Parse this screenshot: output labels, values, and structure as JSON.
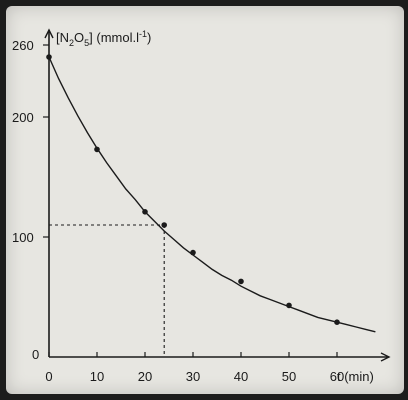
{
  "chart_data": {
    "type": "scatter",
    "ylabel_parts": {
      "pre": "[N",
      "sub1": "2",
      "mid": "O",
      "sub2": "5",
      "post": "] (mmol.l",
      "sup": "-1",
      "end": ")"
    },
    "xlabel": "t (min)",
    "xlim": [
      0,
      68
    ],
    "ylim": [
      0,
      265
    ],
    "x_ticks": [
      "0",
      "10",
      "20",
      "30",
      "40",
      "50",
      "60"
    ],
    "y_ticks": [
      "0",
      "100",
      "200",
      "260"
    ],
    "series": [
      {
        "x": [
          0,
          10,
          20,
          24,
          30,
          40,
          50,
          60
        ],
        "y": [
          250,
          173,
          121,
          110,
          87,
          63,
          43,
          29
        ]
      }
    ],
    "curve": {
      "x": [
        0,
        2,
        4,
        6,
        8,
        10,
        12,
        14,
        16,
        18,
        20,
        22,
        24,
        26,
        28,
        30,
        32,
        34,
        36,
        38,
        40,
        42,
        44,
        46,
        48,
        50,
        52,
        54,
        56,
        58,
        60,
        62,
        64,
        66,
        68
      ],
      "y": [
        250,
        232,
        216,
        201,
        187,
        174,
        162,
        151,
        140,
        131,
        121,
        113,
        105,
        98,
        91,
        85,
        79,
        73,
        68,
        64,
        59,
        55,
        51,
        48,
        45,
        42,
        39,
        36,
        33,
        31,
        29,
        27,
        25,
        23,
        21
      ]
    },
    "guide": {
      "x": 24,
      "y": 110
    }
  }
}
